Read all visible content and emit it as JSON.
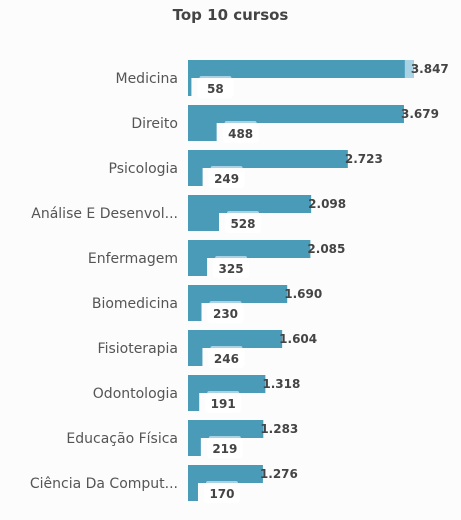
{
  "chart_data": {
    "type": "bar",
    "orientation": "horizontal",
    "title": "Top 10 cursos",
    "xlabel": "",
    "ylabel": "",
    "xlim": [
      0,
      3850
    ],
    "grid": false,
    "legend": "none",
    "categories": [
      "Medicina",
      "Direito",
      "Psicologia",
      "Análise E Desenvol...",
      "Enfermagem",
      "Biomedicina",
      "Fisioterapia",
      "Odontologia",
      "Educação Física",
      "Ciência Da Comput..."
    ],
    "series": [
      {
        "values": [
          3847,
          3679,
          2723,
          2098,
          2085,
          1690,
          1604,
          1318,
          1283,
          1276
        ],
        "labels": [
          "3.847",
          "3.679",
          "2.723",
          "2.098",
          "2.085",
          "1.690",
          "1.604",
          "1.318",
          "1.283",
          "1.276"
        ],
        "color": "#4a9bb8"
      },
      {
        "values": [
          58,
          488,
          249,
          528,
          325,
          230,
          246,
          191,
          219,
          170
        ],
        "labels": [
          "58",
          "488",
          "249",
          "528",
          "325",
          "230",
          "246",
          "191",
          "219",
          "170"
        ],
        "color": "#4a9bb8"
      }
    ],
    "accent_colors": {
      "bar": "#4a9bb8",
      "highlight": "#a9d3e4",
      "label_bg": "#ffffff"
    }
  }
}
